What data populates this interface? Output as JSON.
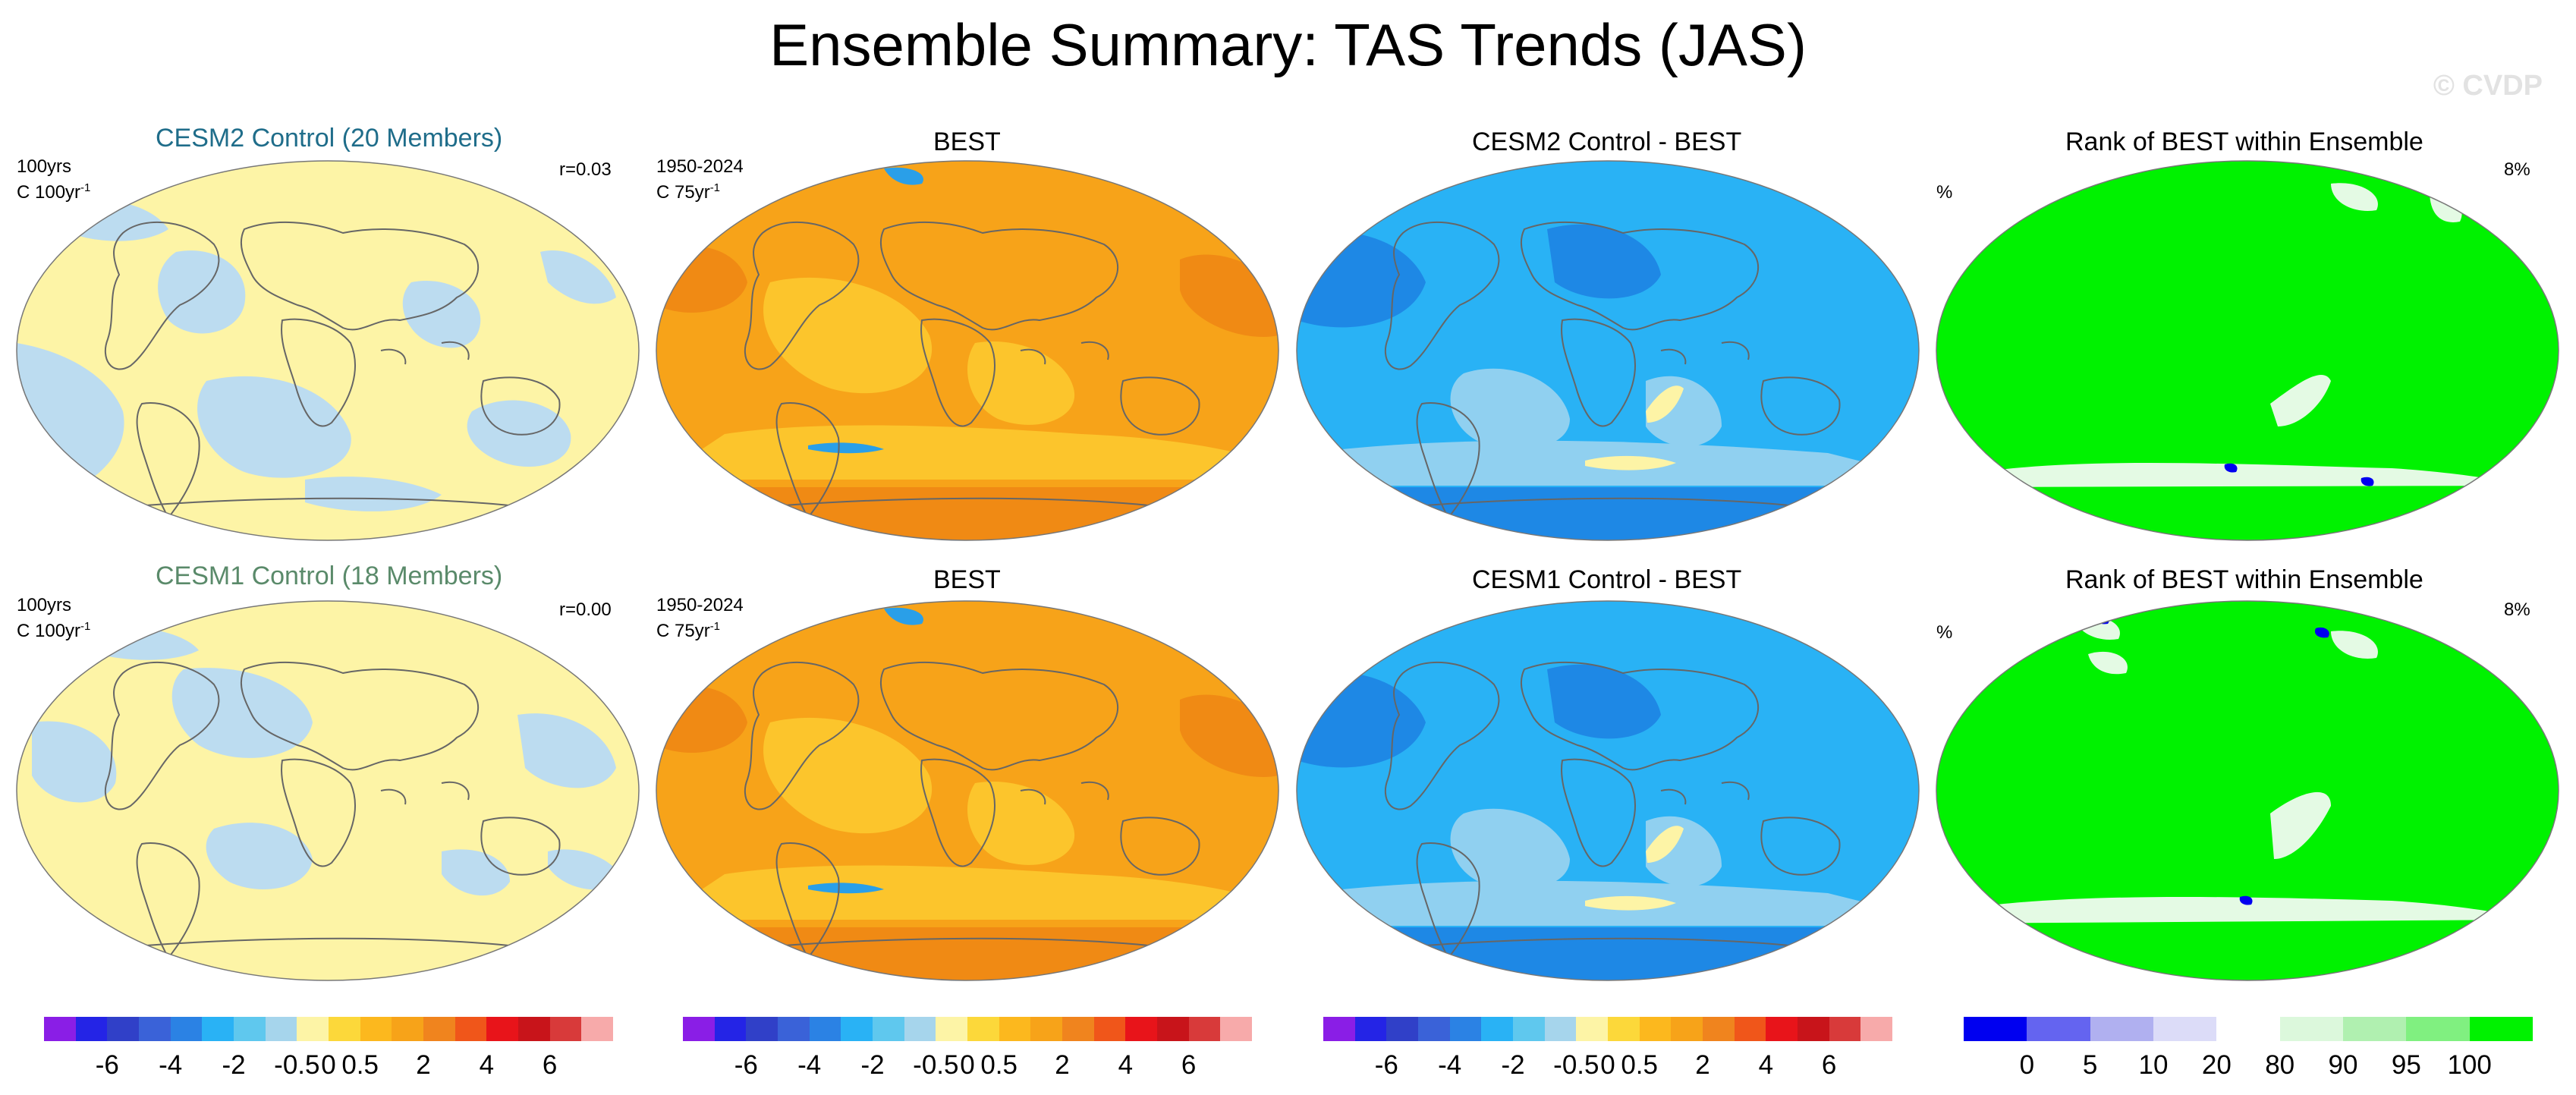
{
  "title": "Ensemble Summary: TAS Trends (JAS)",
  "watermark": "© CVDP",
  "rows": [
    {
      "model_title": "CESM2 Control (20 Members)",
      "model_title_color": "#1f6d8a",
      "model_left_label_1": "100yrs",
      "model_left_label_2": "C 100yr",
      "model_right_label": "r=0.03",
      "obs_title": "BEST",
      "obs_left_label_1": "1950-2024",
      "obs_left_label_2": "C 75yr",
      "diff_title": "CESM2 Control - BEST",
      "rank_title": "Rank of BEST within Ensemble",
      "rank_left_label": "%",
      "rank_right_label": "8%"
    },
    {
      "model_title": "CESM1 Control (18 Members)",
      "model_title_color": "#5a8a6a",
      "model_left_label_1": "100yrs",
      "model_left_label_2": "C 100yr",
      "model_right_label": "r=0.00",
      "obs_title": "BEST",
      "obs_left_label_1": "1950-2024",
      "obs_left_label_2": "C 75yr",
      "diff_title": "CESM1 Control - BEST",
      "rank_title": "Rank of BEST within Ensemble",
      "rank_left_label": "%",
      "rank_right_label": "8%"
    }
  ],
  "exponent": "-1",
  "colors": {
    "model_base": "#fdf4a6",
    "model_alt": "#bcdcf0",
    "obs_base": "#f7a319",
    "obs_light": "#fcc52c",
    "obs_dark": "#f08a14",
    "diff_base": "#29b2f5",
    "diff_light": "#90d0f0",
    "diff_dark": "#1e88e5",
    "rank_base": "#00f200",
    "rank_light": "#e4fae4",
    "coast": "#666666"
  },
  "chart_data": [
    {
      "type": "colorbar",
      "name": "trend scale",
      "units": "C",
      "colors": [
        "#8a1ee6",
        "#2424e6",
        "#3040c8",
        "#3a62d8",
        "#2b82e4",
        "#29b2f5",
        "#5fc8ee",
        "#a6d5ec",
        "#fdf4a6",
        "#fcd83a",
        "#fcb81e",
        "#f7a319",
        "#f0841e",
        "#f0561a",
        "#e8141a",
        "#c8141a",
        "#d83a3a",
        "#f7aaaa"
      ],
      "tick_labels": [
        "-6",
        "-4",
        "-2",
        "-0.5",
        "0",
        "0.5",
        "2",
        "4",
        "6"
      ],
      "tick_boundaries": [
        2,
        4,
        6,
        8,
        9,
        10,
        12,
        14,
        16
      ]
    },
    {
      "type": "colorbar",
      "name": "rank scale",
      "units": "%",
      "colors": [
        "#0000f0",
        "#6464f0",
        "#b0b0f0",
        "#dcdcf8",
        "#ffffff",
        "#dcf8dc",
        "#b0f0b0",
        "#80f080",
        "#00f200"
      ],
      "tick_labels": [
        "0",
        "5",
        "10",
        "20",
        "80",
        "90",
        "95",
        "100"
      ],
      "tick_boundaries": [
        1,
        2,
        3,
        4,
        5,
        6,
        7,
        8
      ]
    }
  ]
}
